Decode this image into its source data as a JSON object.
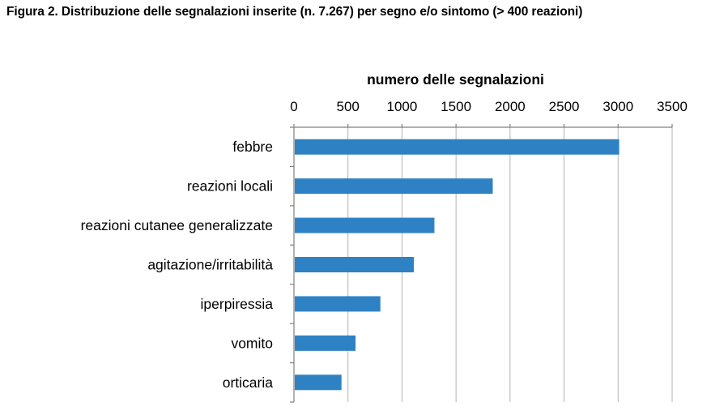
{
  "figure_title": "Figura 2. Distribuzione delle segnalazioni inserite (n. 7.267) per segno e/o sintomo  (> 400 reazioni)",
  "chart_data": {
    "type": "bar",
    "orientation": "horizontal",
    "title": "",
    "xlabel": "numero delle segnalazioni",
    "ylabel": "",
    "categories": [
      "febbre",
      "reazioni locali",
      "reazioni cutanee generalizzate",
      "agitazione/irritabilità",
      "iperpiressia",
      "vomito",
      "orticaria"
    ],
    "values": [
      3010,
      1840,
      1300,
      1110,
      800,
      570,
      440
    ],
    "xlim": [
      0,
      3500
    ],
    "x_ticks": [
      0,
      500,
      1000,
      1500,
      2000,
      2500,
      3000,
      3500
    ],
    "x_axis_position": "top",
    "grid": "vertical",
    "legend": "none",
    "bar_color": "#2e82c4",
    "grid_color": "#b3b3b3"
  }
}
